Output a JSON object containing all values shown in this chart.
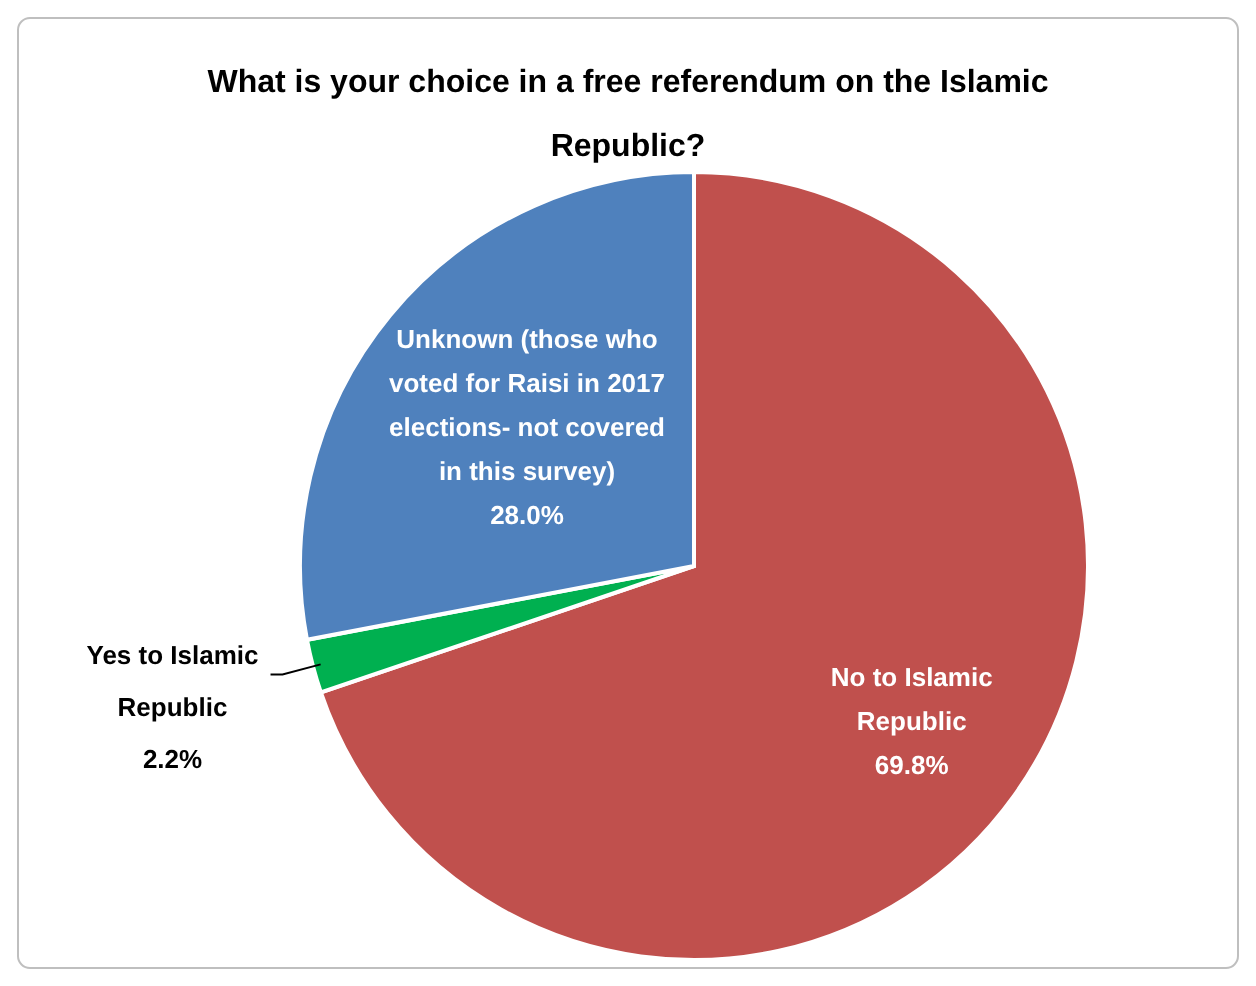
{
  "chart_data": {
    "type": "pie",
    "title": "What is your choice in a free referendum on the Islamic Republic?",
    "categories": [
      "No to Islamic Republic",
      "Yes to Islamic Republic",
      "Unknown (those who voted for Raisi in 2017 elections- not covered in this survey)"
    ],
    "values": [
      69.8,
      2.2,
      28.0
    ],
    "colors": [
      "#c0504d",
      "#00b050",
      "#4f81bd"
    ],
    "value_labels": [
      "69.8%",
      "2.2%",
      "28.0%"
    ]
  }
}
